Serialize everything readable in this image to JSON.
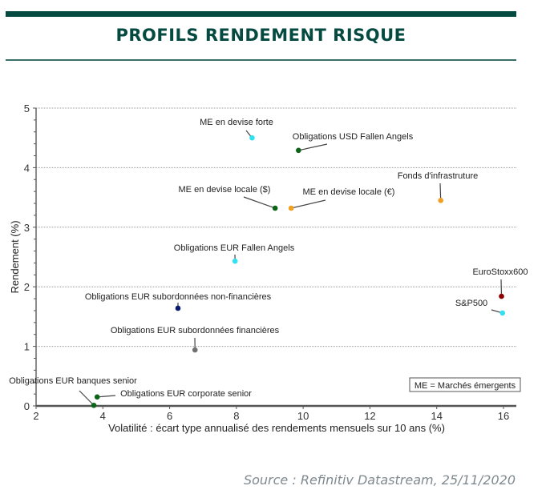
{
  "header": {
    "title": "PROFILS RENDEMENT RISQUE"
  },
  "footer": {
    "source": "Source : Refinitiv Datastream, 25/11/2020"
  },
  "chart_data": {
    "type": "scatter",
    "title": "PROFILS RENDEMENT RISQUE",
    "xlabel": "Volatilité : écart type annualisé des rendements mensuels sur 10 ans (%)",
    "ylabel": "Rendement (%)",
    "xlim": [
      2,
      16.4
    ],
    "ylim": [
      0,
      5
    ],
    "xticks": [
      "2",
      "4",
      "6",
      "8",
      "10",
      "12",
      "14",
      "16"
    ],
    "yticks": [
      "0",
      "1",
      "2",
      "3",
      "4",
      "5"
    ],
    "grid": "horizontal dotted",
    "annotation": "ME = Marchés émergents",
    "annotation_placement": "bottom-right",
    "points": [
      {
        "label": "ME en devise forte",
        "x": 8.47,
        "y": 4.5,
        "color": "#33e0ef"
      },
      {
        "label": "Obligations USD Fallen Angels",
        "x": 9.86,
        "y": 4.29,
        "color": "#0b6417"
      },
      {
        "label": "ME en devise locale ($)",
        "x": 9.16,
        "y": 3.32,
        "color": "#0b6417"
      },
      {
        "label": "ME en devise locale  (€)",
        "x": 9.64,
        "y": 3.32,
        "color": "#f0a020"
      },
      {
        "label": "Fonds d'infrastruture",
        "x": 14.12,
        "y": 3.45,
        "color": "#f0a020"
      },
      {
        "label": "Obligations EUR Fallen Angels",
        "x": 7.96,
        "y": 2.43,
        "color": "#33e0ef"
      },
      {
        "label": "EuroStoxx600",
        "x": 15.94,
        "y": 1.84,
        "color": "#8b0000"
      },
      {
        "label": "S&P500",
        "x": 15.97,
        "y": 1.56,
        "color": "#33e0ef"
      },
      {
        "label": "Obligations EUR subordonnées non-financières",
        "x": 6.25,
        "y": 1.64,
        "color": "#0a1a6e"
      },
      {
        "label": "Obligations EUR subordonnées financières",
        "x": 6.76,
        "y": 0.94,
        "color": "#707070"
      },
      {
        "label": "Obligations EUR corporate senior",
        "x": 3.83,
        "y": 0.15,
        "color": "#0b6417"
      },
      {
        "label": "Obligations EUR banques senior",
        "x": 3.73,
        "y": 0.01,
        "color": "#0b6417"
      }
    ]
  }
}
